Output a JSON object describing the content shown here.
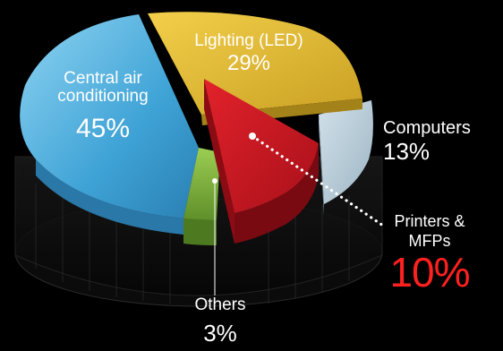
{
  "chart_data": {
    "type": "pie",
    "style": "3d-exploded",
    "slices": [
      {
        "label": "Central air conditioning",
        "value": 45,
        "value_label": "45%",
        "color": "#3fa3d6"
      },
      {
        "label": "Lighting (LED)",
        "value": 29,
        "value_label": "29%",
        "color": "#e6be2e"
      },
      {
        "label": "Computers",
        "value": 13,
        "value_label": "13%",
        "color": "#b7ccd8"
      },
      {
        "label": "Printers & MFPs",
        "value": 10,
        "value_label": "10%",
        "color": "#cf141d",
        "highlight": true
      },
      {
        "label": "Others",
        "value": 3,
        "value_label": "3%",
        "color": "#7fb03c"
      }
    ],
    "labels": {
      "central": {
        "name": "Central air conditioning",
        "pct": "45%"
      },
      "lighting": {
        "name": "Lighting (LED)",
        "pct": "29%"
      },
      "computers": {
        "name": "Computers",
        "pct": "13%"
      },
      "printers": {
        "name": "Printers & MFPs",
        "pct": "10%"
      },
      "others": {
        "name": "Others",
        "pct": "3%"
      }
    },
    "background": "#000000",
    "highlight_color": "#ff2020"
  }
}
